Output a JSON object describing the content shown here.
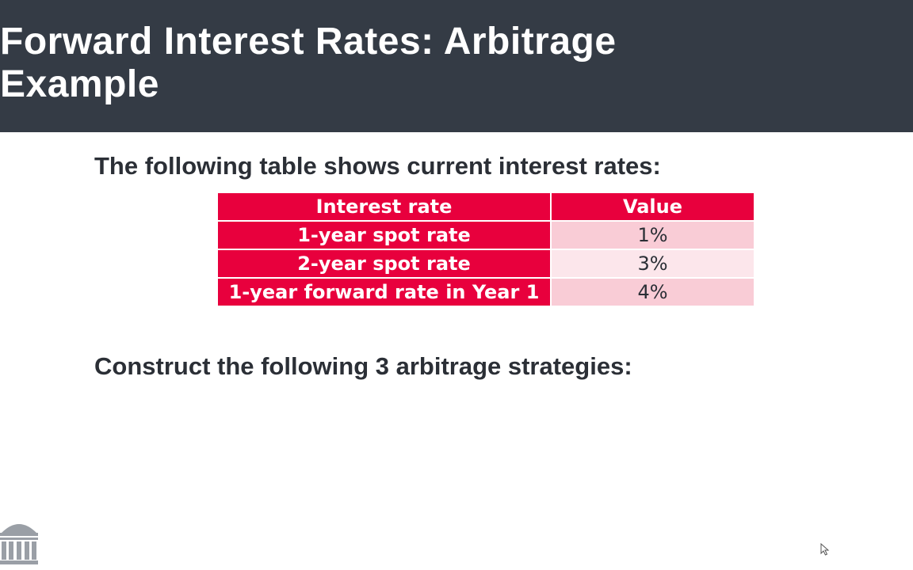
{
  "slide": {
    "title_line1": "Forward Interest Rates: Arbitrage",
    "title_line2": "Example",
    "intro": "The following table shows current interest rates:",
    "construct": "Construct the following 3 arbitrage strategies:"
  },
  "table": {
    "headers": [
      "Interest rate",
      "Value"
    ],
    "rows": [
      {
        "label": "1-year spot rate",
        "value": "1%"
      },
      {
        "label": "2-year spot rate",
        "value": "3%"
      },
      {
        "label": "1-year forward rate in Year 1",
        "value": "4%"
      }
    ]
  },
  "colors": {
    "header_bar": "#343b45",
    "table_accent": "#e8003d",
    "row_tint_dark": "#f9ccd6",
    "row_tint_light": "#fce6eb",
    "text": "#2b2f36"
  },
  "icons": {
    "logo": "institution-dome-icon",
    "cursor": "mouse-pointer-icon"
  }
}
